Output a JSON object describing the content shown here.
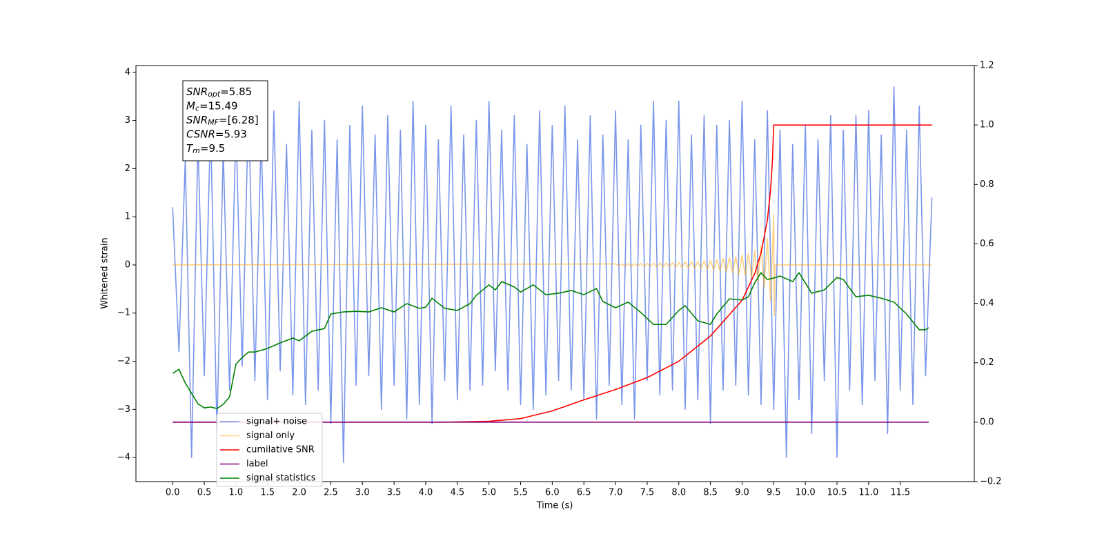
{
  "chart_data": {
    "type": "line",
    "xlabel": "Time (s)",
    "ylabel": "Whitened strain",
    "xlim": [
      -0.58,
      12.67
    ],
    "ylim": [
      -4.5,
      4.14
    ],
    "y2lim": [
      -0.2,
      1.2
    ],
    "xticks": [
      {
        "value": 0,
        "label": "0.0"
      },
      {
        "value": 0.5,
        "label": "0.5"
      },
      {
        "value": 1,
        "label": "1.0"
      },
      {
        "value": 1.5,
        "label": "1.5"
      },
      {
        "value": 2,
        "label": "2.0"
      },
      {
        "value": 2.5,
        "label": "2.5"
      },
      {
        "value": 3,
        "label": "3.0"
      },
      {
        "value": 3.5,
        "label": "3.5"
      },
      {
        "value": 4,
        "label": "4.0"
      },
      {
        "value": 4.5,
        "label": "4.5"
      },
      {
        "value": 5,
        "label": "5.0"
      },
      {
        "value": 5.5,
        "label": "5.5"
      },
      {
        "value": 6,
        "label": "6.0"
      },
      {
        "value": 6.5,
        "label": "6.5"
      },
      {
        "value": 7,
        "label": "7.0"
      },
      {
        "value": 7.5,
        "label": "7.5"
      },
      {
        "value": 8,
        "label": "8.0"
      },
      {
        "value": 8.5,
        "label": "8.5"
      },
      {
        "value": 9,
        "label": "9.0"
      },
      {
        "value": 9.5,
        "label": "9.5"
      },
      {
        "value": 10,
        "label": "10.0"
      },
      {
        "value": 10.5,
        "label": "10.5"
      },
      {
        "value": 11,
        "label": "11.0"
      },
      {
        "value": 11.5,
        "label": "11.5"
      }
    ],
    "yticks": [
      {
        "value": -4,
        "label": "−4"
      },
      {
        "value": -3,
        "label": "−3"
      },
      {
        "value": -2,
        "label": "−2"
      },
      {
        "value": -1,
        "label": "−1"
      },
      0,
      1,
      2,
      3,
      4
    ],
    "y2ticks": [
      {
        "value": -0.2,
        "label": "−0.2"
      },
      {
        "value": 0,
        "label": "0.0"
      },
      {
        "value": 0.2,
        "label": "0.2"
      },
      {
        "value": 0.4,
        "label": "0.4"
      },
      {
        "value": 0.6,
        "label": "0.6"
      },
      {
        "value": 0.8,
        "label": "0.8"
      },
      {
        "value": 1,
        "label": "1.0"
      },
      {
        "value": 1.2,
        "label": "1.2"
      }
    ],
    "annotation": [
      {
        "symbol": "SNR",
        "subscript": "opt",
        "text": "=5.85"
      },
      {
        "symbol": "M",
        "subscript": "c",
        "text": "=15.49"
      },
      {
        "symbol": "SNR",
        "subscript": "MF",
        "text": "=[6.28]"
      },
      {
        "symbol": "CSNR",
        "text": "=5.93"
      },
      {
        "symbol": "T",
        "subscript": "m",
        "text": "=9.5"
      }
    ],
    "series": [
      {
        "name": "signal+ noise",
        "color": "#4169e1",
        "opacity": 0.7,
        "x": [
          0,
          0.1,
          0.2,
          0.3,
          0.4,
          0.5,
          0.6,
          0.7,
          0.8,
          0.9,
          1,
          1.1,
          1.2,
          1.3,
          1.4,
          1.5,
          1.6,
          1.7,
          1.8,
          1.9,
          2,
          2.1,
          2.2,
          2.3,
          2.4,
          2.5,
          2.6,
          2.7,
          2.8,
          2.9,
          3,
          3.1,
          3.2,
          3.3,
          3.4,
          3.5,
          3.6,
          3.7,
          3.8,
          3.9,
          4,
          4.1,
          4.2,
          4.3,
          4.4,
          4.5,
          4.6,
          4.7,
          4.8,
          4.9,
          5,
          5.1,
          5.2,
          5.3,
          5.4,
          5.5,
          5.6,
          5.7,
          5.8,
          5.9,
          6,
          6.1,
          6.2,
          6.3,
          6.4,
          6.5,
          6.6,
          6.7,
          6.8,
          6.9,
          7,
          7.1,
          7.2,
          7.3,
          7.4,
          7.5,
          7.6,
          7.7,
          7.8,
          7.9,
          8,
          8.1,
          8.2,
          8.3,
          8.4,
          8.5,
          8.6,
          8.7,
          8.8,
          8.9,
          9,
          9.1,
          9.2,
          9.3,
          9.4,
          9.5,
          9.6,
          9.7,
          9.8,
          9.9,
          10,
          10.1,
          10.2,
          10.3,
          10.4,
          10.5,
          10.6,
          10.7,
          10.8,
          10.9,
          11,
          11.1,
          11.2,
          11.3,
          11.4,
          11.5,
          11.6,
          11.7,
          11.8,
          11.9,
          12
        ],
        "values": [
          1.2,
          -1.8,
          2.2,
          -4.0,
          2.6,
          -2.3,
          3.0,
          -3.5,
          2.4,
          -2.6,
          2.9,
          -2.1,
          3.3,
          -2.4,
          2.7,
          -2.8,
          3.2,
          -2.2,
          2.5,
          -2.7,
          3.4,
          -2.9,
          2.8,
          -2.6,
          3.0,
          -3.3,
          2.6,
          -4.1,
          2.9,
          -2.5,
          3.3,
          -2.3,
          2.7,
          -3.0,
          3.1,
          -2.5,
          2.8,
          -3.2,
          3.4,
          -2.9,
          2.9,
          -3.3,
          2.6,
          -2.4,
          3.3,
          -2.8,
          2.7,
          -2.6,
          3.0,
          -2.5,
          3.4,
          -2.2,
          2.8,
          -2.6,
          3.1,
          -2.9,
          2.5,
          -3.0,
          3.2,
          -2.7,
          2.9,
          -2.4,
          3.3,
          -2.6,
          2.6,
          -2.8,
          3.1,
          -3.2,
          2.7,
          -2.5,
          3.2,
          -2.9,
          2.6,
          -3.2,
          2.9,
          -2.4,
          3.4,
          -2.7,
          3.0,
          -2.6,
          3.4,
          -3.0,
          2.7,
          -2.8,
          3.1,
          -3.3,
          2.9,
          -2.6,
          3.0,
          -2.5,
          3.4,
          -2.7,
          2.6,
          -2.9,
          3.2,
          -3.0,
          2.8,
          -4.0,
          2.5,
          -2.8,
          2.9,
          -3.5,
          2.6,
          -2.4,
          3.1,
          -4.0,
          2.8,
          -2.6,
          3.1,
          -2.9,
          3.2,
          -2.4,
          2.7,
          -3.5,
          3.7,
          -2.6,
          2.8,
          -2.9,
          3.3,
          -2.3,
          1.4
        ]
      },
      {
        "name": "signal only",
        "color": "#ffa500",
        "opacity": 0.5,
        "x": [
          0,
          7,
          7.05,
          7.1,
          7.15,
          7.2,
          7.25,
          7.3,
          7.35,
          7.4,
          7.45,
          7.5,
          7.55,
          7.6,
          7.65,
          7.7,
          7.75,
          7.8,
          7.85,
          7.9,
          7.95,
          8,
          8.05,
          8.1,
          8.15,
          8.2,
          8.25,
          8.3,
          8.35,
          8.4,
          8.45,
          8.5,
          8.55,
          8.6,
          8.65,
          8.7,
          8.75,
          8.8,
          8.85,
          8.9,
          8.95,
          9,
          9.05,
          9.1,
          9.15,
          9.2,
          9.25,
          9.3,
          9.35,
          9.4,
          9.45,
          9.5,
          9.51,
          9.52,
          12
        ],
        "values": [
          0,
          0.02,
          -0.02,
          0.02,
          -0.02,
          0.025,
          -0.025,
          0.025,
          -0.025,
          0.03,
          -0.03,
          0.03,
          -0.03,
          0.035,
          -0.035,
          0.04,
          -0.04,
          0.04,
          -0.045,
          0.045,
          -0.05,
          0.05,
          -0.055,
          0.06,
          -0.06,
          0.065,
          -0.07,
          0.07,
          -0.075,
          0.08,
          -0.085,
          0.09,
          -0.1,
          0.11,
          -0.12,
          0.13,
          -0.14,
          0.15,
          -0.16,
          0.17,
          -0.19,
          0.2,
          -0.22,
          0.24,
          -0.27,
          0.3,
          -0.35,
          0.4,
          -0.47,
          0.55,
          -0.75,
          1.05,
          -1.05,
          0,
          0
        ]
      },
      {
        "name": "cumilative SNR",
        "color": "#ff0000",
        "axis": "y2",
        "x": [
          0,
          4.3,
          5,
          5.5,
          6,
          6.5,
          7,
          7.5,
          8,
          8.5,
          9,
          9.2,
          9.3,
          9.4,
          9.45,
          9.48,
          9.5,
          12
        ],
        "values": [
          0,
          0,
          0.003,
          0.012,
          0.038,
          0.075,
          0.11,
          0.15,
          0.205,
          0.29,
          0.41,
          0.5,
          0.57,
          0.68,
          0.78,
          0.88,
          1,
          1
        ]
      },
      {
        "name": "label",
        "color": "#800080",
        "axis": "y2",
        "x": [
          0,
          11.95
        ],
        "values": [
          0,
          0
        ]
      },
      {
        "name": "signal statistics",
        "color": "#008000",
        "axis": "y2",
        "x": [
          0,
          0.1,
          0.2,
          0.3,
          0.4,
          0.5,
          0.6,
          0.7,
          0.8,
          0.9,
          1,
          1.1,
          1.2,
          1.3,
          1.5,
          1.7,
          1.9,
          2,
          2.2,
          2.4,
          2.5,
          2.7,
          2.9,
          3.1,
          3.3,
          3.5,
          3.7,
          3.9,
          4,
          4.1,
          4.3,
          4.5,
          4.7,
          4.8,
          5,
          5.1,
          5.2,
          5.4,
          5.5,
          5.7,
          5.9,
          6.1,
          6.3,
          6.5,
          6.7,
          6.8,
          7,
          7.2,
          7.4,
          7.6,
          7.8,
          8,
          8.1,
          8.3,
          8.5,
          8.6,
          8.8,
          9,
          9.1,
          9.2,
          9.3,
          9.4,
          9.5,
          9.6,
          9.8,
          9.9,
          10.1,
          10.3,
          10.5,
          10.6,
          10.8,
          11,
          11.2,
          11.4,
          11.6,
          11.8,
          11.9,
          11.95
        ],
        "values": [
          0.164,
          0.178,
          0.132,
          0.097,
          0.062,
          0.048,
          0.051,
          0.046,
          0.06,
          0.085,
          0.195,
          0.218,
          0.236,
          0.236,
          0.248,
          0.267,
          0.283,
          0.274,
          0.306,
          0.315,
          0.364,
          0.371,
          0.373,
          0.371,
          0.385,
          0.371,
          0.399,
          0.383,
          0.387,
          0.417,
          0.383,
          0.376,
          0.399,
          0.427,
          0.462,
          0.445,
          0.473,
          0.455,
          0.438,
          0.462,
          0.429,
          0.434,
          0.443,
          0.429,
          0.45,
          0.406,
          0.385,
          0.404,
          0.369,
          0.329,
          0.329,
          0.376,
          0.392,
          0.341,
          0.329,
          0.364,
          0.415,
          0.411,
          0.422,
          0.469,
          0.503,
          0.48,
          0.485,
          0.492,
          0.473,
          0.503,
          0.434,
          0.445,
          0.487,
          0.48,
          0.422,
          0.427,
          0.417,
          0.404,
          0.364,
          0.311,
          0.311,
          0.318
        ]
      }
    ]
  }
}
